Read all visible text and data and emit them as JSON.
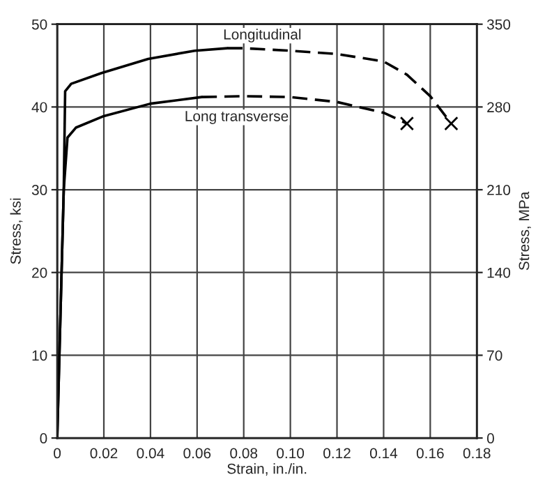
{
  "chart_data": {
    "type": "line",
    "xlabel": "Strain, in./in.",
    "ylabel": "Stress, ksi",
    "y2label": "Stress, MPa",
    "series": [
      {
        "name": "Longitudinal",
        "color": "#000000",
        "line_style": "solid",
        "x": [
          0,
          0.0028,
          0.0034,
          0.006,
          0.019,
          0.039,
          0.059,
          0.073
        ],
        "values": [
          0,
          30,
          41.9,
          42.8,
          44.1,
          45.8,
          46.8,
          47.1
        ]
      },
      {
        "color": "#000000",
        "line_style": "dashed",
        "x": [
          0.073,
          0.08,
          0.1,
          0.12,
          0.14,
          0.15,
          0.16,
          0.169
        ],
        "values": [
          47.1,
          47.1,
          46.8,
          46.4,
          45.5,
          43.9,
          41.3,
          38.0
        ]
      },
      {
        "name": "Long transverse",
        "color": "#000000",
        "line_style": "solid",
        "x": [
          0,
          0.0028,
          0.0044,
          0.008,
          0.02,
          0.04,
          0.062
        ],
        "values": [
          0,
          30,
          36.3,
          37.5,
          38.9,
          40.4,
          41.2
        ]
      },
      {
        "color": "#000000",
        "line_style": "dashed",
        "x": [
          0.062,
          0.08,
          0.1,
          0.12,
          0.14,
          0.15
        ],
        "values": [
          41.2,
          41.3,
          41.2,
          40.6,
          39.3,
          38.0
        ]
      },
      {
        "type": "scatter",
        "color": "#000000",
        "marker": "cross",
        "x": [
          0.15,
          0.169
        ],
        "values": [
          38.0,
          38.0
        ]
      }
    ],
    "xlim": [
      0,
      0.18
    ],
    "xticks": [
      0,
      {
        "value": 0.02,
        "label": "0.02"
      },
      {
        "value": 0.04,
        "label": "0.04"
      },
      {
        "value": 0.06,
        "label": "0.06"
      },
      {
        "value": 0.08,
        "label": "0.08"
      },
      {
        "value": 0.1,
        "label": "0.10"
      },
      {
        "value": 0.12,
        "label": "0.12"
      },
      {
        "value": 0.14,
        "label": "0.14"
      },
      {
        "value": 0.16,
        "label": "0.16"
      },
      {
        "value": 0.18,
        "label": "0.18"
      }
    ],
    "ylim": [
      0,
      50
    ],
    "yticks": [
      0,
      10,
      20,
      30,
      40,
      50
    ],
    "y2lim": [
      0,
      350
    ],
    "y2ticks": [
      0,
      70,
      140,
      210,
      280,
      350
    ],
    "grid": true
  }
}
